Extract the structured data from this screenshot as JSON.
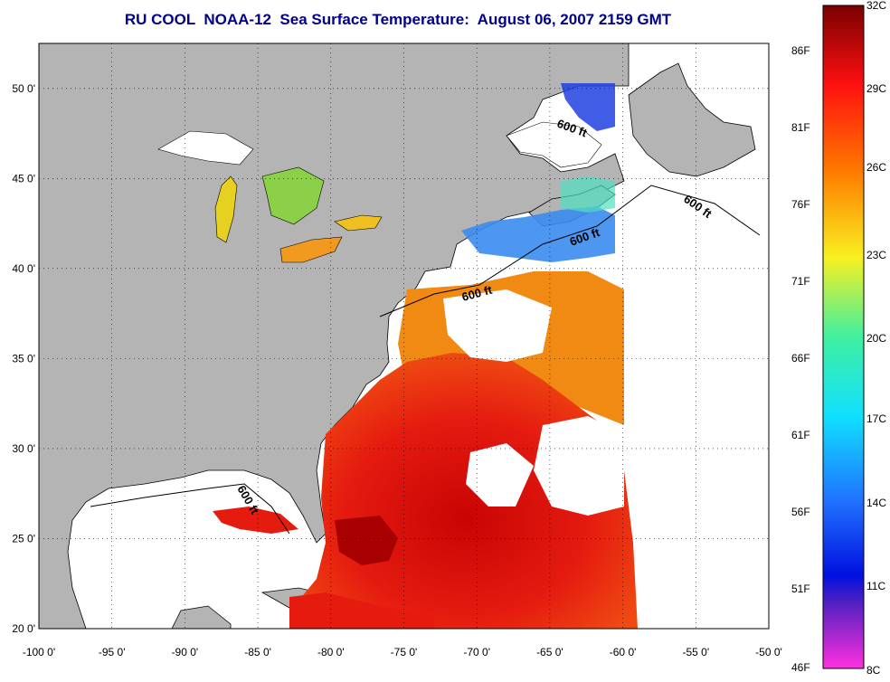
{
  "title": "RU COOL  NOAA-12  Sea Surface Temperature:  August 06, 2007 2159 GMT",
  "map": {
    "lon_range": [
      -100,
      -50
    ],
    "lat_range": [
      20,
      52.5
    ],
    "x_ticks": [
      "-100 0'",
      "-95 0'",
      "-90 0'",
      "-85 0'",
      "-80 0'",
      "-75 0'",
      "-70 0'",
      "-65 0'",
      "-60 0'",
      "-55 0'",
      "-50 0'"
    ],
    "y_ticks": [
      "50 0'",
      "45 0'",
      "40 0'",
      "35 0'",
      "30 0'",
      "25 0'",
      "20 0'"
    ],
    "contour_label": "600 ft",
    "colors": {
      "land": "#b4b4b4",
      "no_data": "#ffffff",
      "warm_sst": "#e81010",
      "hot_sst": "#b40000",
      "mid_sst": "#f07a10",
      "cool_sst": "#2a6cf0"
    }
  },
  "colorbar": {
    "fahrenheit_labels": [
      "86F",
      "81F",
      "76F",
      "71F",
      "66F",
      "61F",
      "56F",
      "51F",
      "46F"
    ],
    "celsius_labels": [
      "32C",
      "29C",
      "26C",
      "23C",
      "20C",
      "17C",
      "14C",
      "11C",
      "8C"
    ],
    "range_c": [
      8,
      32
    ]
  }
}
